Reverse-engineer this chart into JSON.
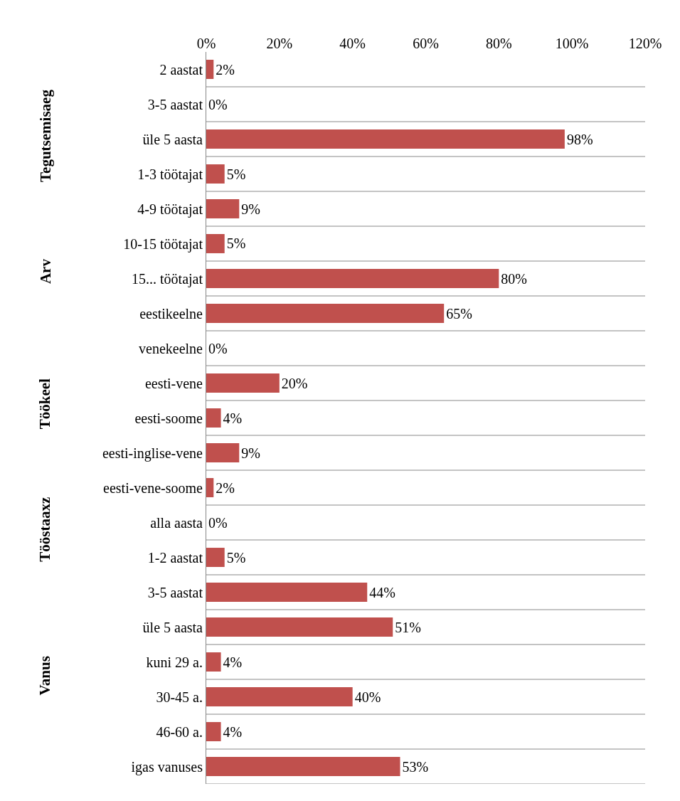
{
  "chart_data": {
    "type": "bar",
    "orientation": "horizontal",
    "categories": [
      "2 aastat",
      "3-5 aastat",
      "üle 5 aasta",
      "1-3 töötajat",
      "4-9 töötajat",
      "10-15 töötajat",
      "15... töötajat",
      "eestikeelne",
      "venekeelne",
      "eesti-vene",
      "eesti-soome",
      "eesti-inglise-vene",
      "eesti-vene-soome",
      "alla aasta",
      "1-2 aastat",
      "3-5 aastat",
      "üle 5 aasta",
      "kuni 29 a.",
      "30-45 a.",
      "46-60 a.",
      "igas vanuses"
    ],
    "values": [
      2,
      0,
      98,
      5,
      9,
      5,
      80,
      65,
      0,
      20,
      4,
      9,
      2,
      0,
      5,
      44,
      51,
      4,
      40,
      4,
      53
    ],
    "value_labels": [
      "2%",
      "0%",
      "98%",
      "5%",
      "9%",
      "5%",
      "80%",
      "65%",
      "0%",
      "20%",
      "4%",
      "9%",
      "2%",
      "0%",
      "5%",
      "44%",
      "51%",
      "4%",
      "40%",
      "4%",
      "53%"
    ],
    "color": "#c0504d",
    "xlim": [
      0,
      120
    ],
    "xticks": [
      {
        "value": 0,
        "label": "0%"
      },
      {
        "value": 20,
        "label": "20%"
      },
      {
        "value": 40,
        "label": "40%"
      },
      {
        "value": 60,
        "label": "60%"
      },
      {
        "value": 80,
        "label": "80%"
      },
      {
        "value": 100,
        "label": "100%"
      },
      {
        "value": 120,
        "label": "120%"
      }
    ],
    "grid": "y",
    "annotations": [
      "Tegutsemisaeg",
      "Arv",
      "Töökeel",
      "Tööstaaxz",
      "Vanus"
    ]
  }
}
